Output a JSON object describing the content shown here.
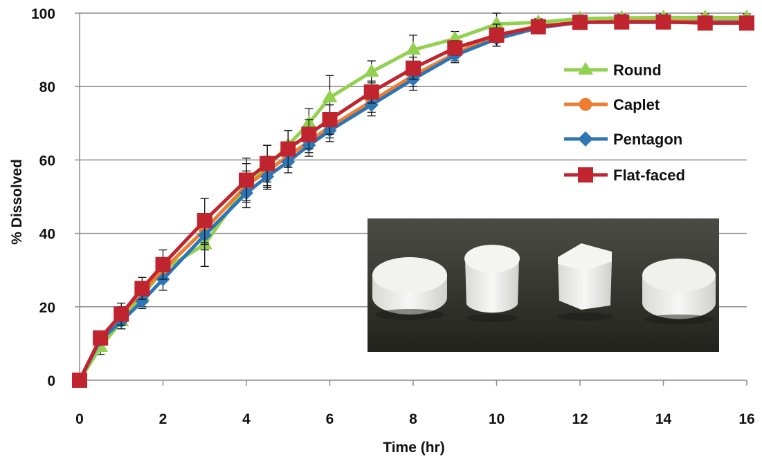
{
  "chart_data": {
    "type": "line",
    "title": "",
    "xlabel": "Time (hr)",
    "ylabel": "% Dissolved",
    "xlim": [
      0,
      16
    ],
    "ylim": [
      0,
      100
    ],
    "x_ticks": [
      "0",
      "2",
      "4",
      "6",
      "8",
      "10",
      "12",
      "14",
      "16"
    ],
    "y_ticks": [
      "0",
      "20",
      "40",
      "60",
      "80",
      "100"
    ],
    "grid": "horizontal",
    "legend_position": "right",
    "inset_photo": "four white tablets (round, caplet, pentagon, flat-faced) on dark background",
    "series": [
      {
        "name": "Round",
        "color": "#92d050",
        "marker": "triangle",
        "x": [
          0,
          0.5,
          1,
          1.5,
          2,
          3,
          4,
          4.5,
          5,
          5.5,
          6,
          7,
          8,
          9,
          10,
          11,
          12,
          13,
          14,
          15,
          16
        ],
        "values": [
          0,
          9,
          16,
          23,
          30,
          37,
          53,
          58,
          64,
          70,
          77,
          84,
          90,
          93,
          97,
          97.5,
          98.5,
          98.7,
          98.8,
          98.8,
          98.8
        ],
        "errors": [
          0,
          2,
          2,
          3,
          3,
          6,
          6,
          6,
          4,
          4,
          6,
          3,
          4,
          2,
          3,
          1,
          1,
          1,
          1,
          1,
          1
        ]
      },
      {
        "name": "Caplet",
        "color": "#ed7d31",
        "marker": "circle",
        "x": [
          0,
          0.5,
          1,
          1.5,
          2,
          3,
          4,
          4.5,
          5,
          5.5,
          6,
          7,
          8,
          9,
          10,
          11,
          12,
          13,
          14,
          15,
          16
        ],
        "values": [
          0,
          11,
          18,
          24,
          30,
          41,
          53,
          57,
          61,
          65,
          69,
          76,
          83,
          89,
          94,
          96.5,
          97.5,
          97.8,
          97.8,
          97.8,
          97.8
        ],
        "errors": [
          0,
          1,
          2,
          2,
          3,
          4,
          4,
          4,
          3,
          3,
          3,
          3,
          3,
          2,
          2,
          1,
          1,
          1,
          1,
          1,
          1
        ]
      },
      {
        "name": "Pentagon",
        "color": "#2e75b6",
        "marker": "diamond",
        "x": [
          0,
          0.5,
          1,
          1.5,
          2,
          3,
          4,
          4.5,
          5,
          5.5,
          6,
          7,
          8,
          9,
          10,
          11,
          12,
          13,
          14,
          15,
          16
        ],
        "values": [
          0,
          11,
          16,
          21.5,
          27.5,
          39.5,
          51,
          55.5,
          59.5,
          64,
          68,
          75,
          82,
          88.5,
          93,
          96,
          97.5,
          97.5,
          97.5,
          97.5,
          97.5
        ],
        "errors": [
          0,
          1,
          2,
          2,
          3,
          4,
          4,
          3,
          3,
          3,
          3,
          3,
          3,
          2,
          2,
          1,
          1,
          1,
          1,
          1,
          1
        ]
      },
      {
        "name": "Flat-faced",
        "color": "#c0242e",
        "marker": "square",
        "x": [
          0,
          0.5,
          1,
          1.5,
          2,
          3,
          4,
          4.5,
          5,
          5.5,
          6,
          7,
          8,
          9,
          10,
          11,
          12,
          13,
          14,
          15,
          16
        ],
        "values": [
          0,
          11.5,
          18,
          25,
          31.5,
          43.5,
          54.5,
          59,
          63,
          67,
          71,
          78.5,
          85,
          90.5,
          94,
          96.3,
          97.5,
          97.6,
          97.6,
          97.3,
          97.3
        ],
        "errors": [
          0,
          1.5,
          3,
          3,
          4,
          6,
          6,
          5,
          5,
          4,
          4,
          3,
          3,
          2,
          3,
          1,
          1,
          1,
          1,
          1,
          1
        ]
      }
    ]
  }
}
